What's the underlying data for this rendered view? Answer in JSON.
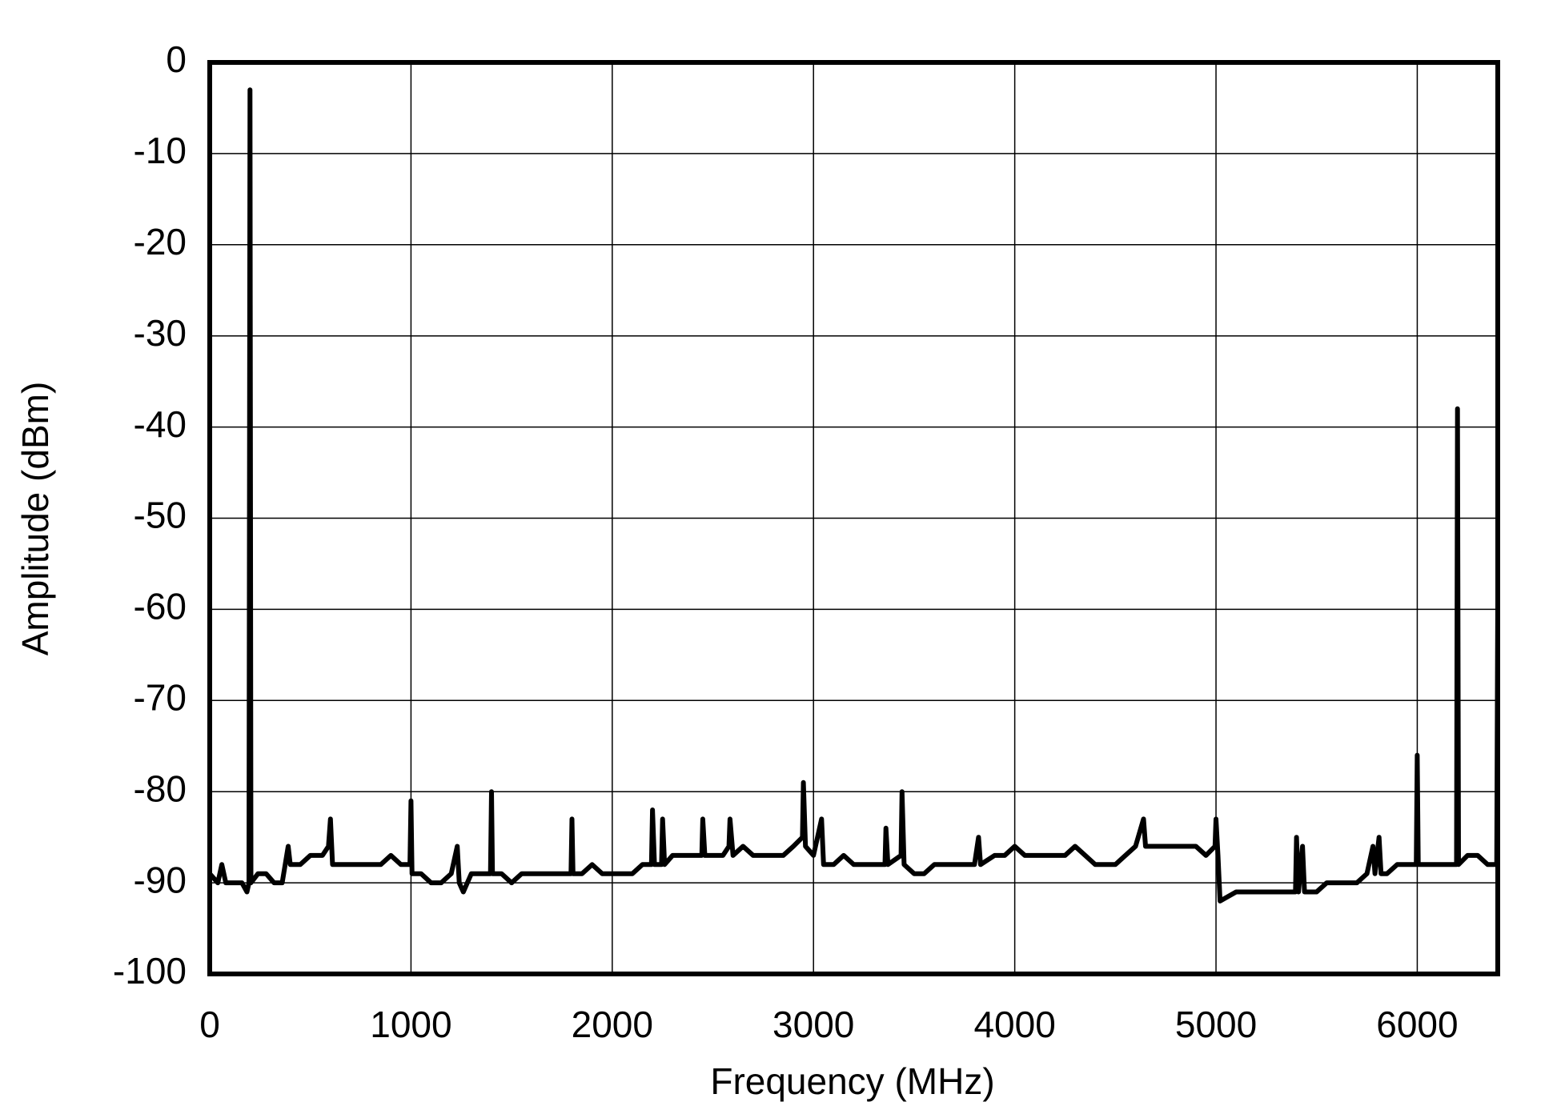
{
  "chart_data": {
    "type": "line",
    "x_label": "Frequency (MHz)",
    "y_label": "Amplitude (dBm)",
    "xlim": [
      0,
      6400
    ],
    "ylim": [
      -100,
      0
    ],
    "xticks": [
      0,
      1000,
      2000,
      3000,
      4000,
      5000,
      6000
    ],
    "yticks": [
      -100,
      -90,
      -80,
      -70,
      -60,
      -50,
      -40,
      -30,
      -20,
      -10,
      0
    ],
    "grid": true,
    "color": "#000000",
    "x": [
      0,
      40,
      60,
      80,
      120,
      160,
      185,
      195,
      200,
      205,
      240,
      280,
      320,
      360,
      390,
      400,
      450,
      500,
      560,
      590,
      600,
      610,
      650,
      700,
      750,
      800,
      850,
      900,
      950,
      995,
      1000,
      1005,
      1050,
      1100,
      1150,
      1200,
      1230,
      1240,
      1260,
      1300,
      1350,
      1395,
      1400,
      1405,
      1450,
      1500,
      1550,
      1600,
      1650,
      1700,
      1750,
      1795,
      1800,
      1805,
      1850,
      1900,
      1950,
      2000,
      2050,
      2100,
      2150,
      2195,
      2200,
      2210,
      2245,
      2250,
      2260,
      2300,
      2350,
      2400,
      2445,
      2450,
      2460,
      2500,
      2550,
      2580,
      2585,
      2600,
      2650,
      2700,
      2750,
      2800,
      2850,
      2900,
      2945,
      2950,
      2960,
      3000,
      3040,
      3050,
      3100,
      3150,
      3200,
      3250,
      3300,
      3355,
      3360,
      3370,
      3435,
      3440,
      3450,
      3500,
      3550,
      3600,
      3650,
      3700,
      3750,
      3800,
      3820,
      3830,
      3900,
      3950,
      4000,
      4050,
      4100,
      4150,
      4200,
      4250,
      4300,
      4350,
      4400,
      4450,
      4500,
      4550,
      4600,
      4640,
      4650,
      4700,
      4750,
      4800,
      4850,
      4900,
      4950,
      4995,
      5000,
      5010,
      5020,
      5100,
      5150,
      5200,
      5250,
      5300,
      5350,
      5395,
      5400,
      5410,
      5430,
      5440,
      5500,
      5550,
      5600,
      5650,
      5700,
      5750,
      5780,
      5790,
      5810,
      5820,
      5850,
      5900,
      5950,
      5995,
      6000,
      6005,
      6050,
      6100,
      6150,
      6195,
      6200,
      6205,
      6250,
      6300,
      6350,
      6395,
      6400
    ],
    "values": [
      -89,
      -90,
      -88,
      -90,
      -90,
      -90,
      -91,
      -90,
      -3,
      -90,
      -89,
      -89,
      -90,
      -90,
      -86,
      -88,
      -88,
      -87,
      -87,
      -86,
      -83,
      -88,
      -88,
      -88,
      -88,
      -88,
      -88,
      -87,
      -88,
      -88,
      -81,
      -89,
      -89,
      -90,
      -90,
      -89,
      -86,
      -90,
      -91,
      -89,
      -89,
      -89,
      -80,
      -89,
      -89,
      -90,
      -89,
      -89,
      -89,
      -89,
      -89,
      -89,
      -83,
      -89,
      -89,
      -88,
      -89,
      -89,
      -89,
      -89,
      -88,
      -88,
      -82,
      -88,
      -88,
      -83,
      -88,
      -87,
      -87,
      -87,
      -87,
      -83,
      -87,
      -87,
      -87,
      -86,
      -83,
      -87,
      -86,
      -87,
      -87,
      -87,
      -87,
      -86,
      -85,
      -79,
      -86,
      -87,
      -83,
      -88,
      -88,
      -87,
      -88,
      -88,
      -88,
      -88,
      -84,
      -88,
      -87,
      -80,
      -88,
      -89,
      -89,
      -88,
      -88,
      -88,
      -88,
      -88,
      -85,
      -88,
      -87,
      -87,
      -86,
      -87,
      -87,
      -87,
      -87,
      -87,
      -86,
      -87,
      -88,
      -88,
      -88,
      -87,
      -86,
      -83,
      -86,
      -86,
      -86,
      -86,
      -86,
      -86,
      -87,
      -86,
      -83,
      -87,
      -92,
      -91,
      -91,
      -91,
      -91,
      -91,
      -91,
      -91,
      -85,
      -91,
      -86,
      -91,
      -91,
      -90,
      -90,
      -90,
      -90,
      -89,
      -86,
      -89,
      -85,
      -89,
      -89,
      -88,
      -88,
      -88,
      -76,
      -88,
      -88,
      -88,
      -88,
      -88,
      -38,
      -88,
      -87,
      -87,
      -88,
      -88,
      -59
    ]
  }
}
